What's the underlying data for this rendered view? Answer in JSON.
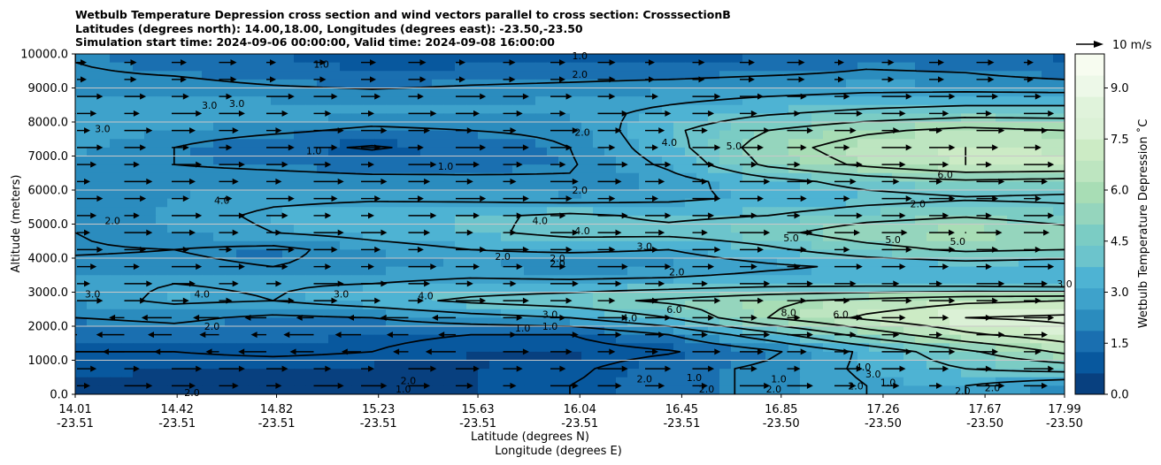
{
  "title_lines": [
    "Wetbulb Temperature Depression cross section and wind vectors parallel to cross section: CrosssectionB",
    "Latitudes (degrees north): 14.00,18.00, Longitudes (degrees east): -23.50,-23.50",
    "Simulation start time: 2024-09-06 00:00:00, Valid time: 2024-09-08 16:00:00"
  ],
  "chart_data": {
    "type": "heatmap",
    "title": "Wetbulb Temperature Depression cross section and wind vectors parallel to cross section: CrosssectionB",
    "ylabel": "Altitude (meters)",
    "xlabel_line1": "Latitude (degrees N)",
    "xlabel_line2": "Longitude (degrees E)",
    "ylim": [
      0,
      10000
    ],
    "yticks": [
      "0.0",
      "1000.0",
      "2000.0",
      "3000.0",
      "4000.0",
      "5000.0",
      "6000.0",
      "7000.0",
      "8000.0",
      "9000.0",
      "10000.0"
    ],
    "ytick_values": [
      0,
      1000,
      2000,
      3000,
      4000,
      5000,
      6000,
      7000,
      8000,
      9000,
      10000
    ],
    "xlim": [
      14.01,
      17.99
    ],
    "xticks": [
      {
        "lat": "14.01",
        "lon": "-23.51",
        "v": 14.01
      },
      {
        "lat": "14.42",
        "lon": "-23.51",
        "v": 14.42
      },
      {
        "lat": "14.82",
        "lon": "-23.51",
        "v": 14.82
      },
      {
        "lat": "15.23",
        "lon": "-23.51",
        "v": 15.23
      },
      {
        "lat": "15.63",
        "lon": "-23.51",
        "v": 15.63
      },
      {
        "lat": "16.04",
        "lon": "-23.51",
        "v": 16.04
      },
      {
        "lat": "16.45",
        "lon": "-23.51",
        "v": 16.45
      },
      {
        "lat": "16.85",
        "lon": "-23.50",
        "v": 16.85
      },
      {
        "lat": "17.26",
        "lon": "-23.50",
        "v": 17.26
      },
      {
        "lat": "17.67",
        "lon": "-23.50",
        "v": 17.67
      },
      {
        "lat": "17.99",
        "lon": "-23.50",
        "v": 17.99
      }
    ],
    "grid": "horizontal",
    "colorbar": {
      "label": "Wetbulb Temperature Depression ˚C",
      "range": [
        0,
        10
      ],
      "ticks": [
        "0.0",
        "1.5",
        "3.0",
        "4.5",
        "6.0",
        "7.5",
        "9.0"
      ],
      "tick_values": [
        0,
        1.5,
        3.0,
        4.5,
        6.0,
        7.5,
        9.0
      ],
      "colors": [
        "#08407f",
        "#08589e",
        "#1a6fb0",
        "#2b8cbe",
        "#3ea2cb",
        "#4eb3d3",
        "#6cc4cc",
        "#7bccc4",
        "#95d5bd",
        "#a8ddb5",
        "#bde5c0",
        "#ccebc5",
        "#dbf1d6",
        "#e0f3db",
        "#edf8e8",
        "#f7fcf0"
      ]
    },
    "quiver_key": "10 m/s",
    "field_rows": [
      {
        "alt": 9750,
        "values": [
          2.0,
          1.6,
          1.3,
          1.0,
          1.1,
          1.2,
          1.1,
          1.3,
          1.8,
          1.7,
          1.2
        ]
      },
      {
        "alt": 9250,
        "values": [
          2.2,
          2.1,
          1.8,
          1.6,
          1.8,
          1.9,
          2.0,
          2.2,
          2.3,
          2.2,
          2.0
        ]
      },
      {
        "alt": 8750,
        "values": [
          2.6,
          2.5,
          2.4,
          2.3,
          2.4,
          2.5,
          2.7,
          3.0,
          3.2,
          3.3,
          3.3
        ]
      },
      {
        "alt": 8250,
        "values": [
          3.0,
          2.9,
          2.8,
          2.6,
          2.6,
          2.6,
          3.3,
          3.9,
          4.3,
          4.6,
          4.6
        ]
      },
      {
        "alt": 7750,
        "values": [
          2.9,
          2.5,
          2.2,
          1.8,
          2.0,
          2.2,
          3.8,
          5.0,
          5.8,
          6.3,
          6.0
        ]
      },
      {
        "alt": 7250,
        "values": [
          2.6,
          2.0,
          1.3,
          0.9,
          1.4,
          2.0,
          3.6,
          5.5,
          6.6,
          7.0,
          6.8
        ]
      },
      {
        "alt": 6750,
        "values": [
          2.4,
          2.0,
          1.8,
          1.6,
          1.7,
          1.9,
          3.2,
          5.2,
          6.2,
          7.0,
          6.9
        ]
      },
      {
        "alt": 6250,
        "values": [
          2.2,
          2.4,
          2.4,
          2.3,
          2.2,
          2.1,
          2.6,
          3.6,
          4.4,
          4.8,
          4.6
        ]
      },
      {
        "alt": 5750,
        "values": [
          2.1,
          2.5,
          2.8,
          2.9,
          2.8,
          2.6,
          2.8,
          3.2,
          3.6,
          3.9,
          3.8
        ]
      },
      {
        "alt": 5250,
        "values": [
          2.0,
          2.6,
          3.2,
          3.5,
          3.8,
          4.2,
          3.8,
          4.0,
          4.6,
          4.9,
          4.5
        ]
      },
      {
        "alt": 4750,
        "values": [
          2.0,
          2.5,
          3.0,
          3.4,
          3.8,
          4.3,
          4.3,
          4.7,
          5.6,
          6.0,
          5.4
        ]
      },
      {
        "alt": 4250,
        "values": [
          1.9,
          2.0,
          1.7,
          2.5,
          3.0,
          3.2,
          3.0,
          3.8,
          4.6,
          5.2,
          5.0
        ]
      },
      {
        "alt": 3750,
        "values": [
          2.2,
          2.2,
          2.0,
          2.3,
          2.4,
          2.1,
          2.3,
          2.8,
          3.2,
          3.4,
          3.2
        ]
      },
      {
        "alt": 3250,
        "values": [
          2.8,
          3.0,
          2.9,
          3.0,
          3.3,
          3.3,
          3.4,
          3.6,
          3.6,
          3.5,
          3.3
        ]
      },
      {
        "alt": 2750,
        "values": [
          2.6,
          3.2,
          3.0,
          3.6,
          4.2,
          4.6,
          5.2,
          5.8,
          6.3,
          6.8,
          7.0
        ]
      },
      {
        "alt": 2250,
        "values": [
          2.0,
          2.2,
          1.8,
          2.0,
          2.6,
          3.0,
          4.0,
          6.0,
          7.2,
          8.0,
          8.2
        ]
      },
      {
        "alt": 1750,
        "values": [
          1.4,
          1.6,
          1.4,
          1.2,
          1.0,
          1.0,
          2.0,
          3.6,
          5.4,
          6.8,
          7.6
        ]
      },
      {
        "alt": 1250,
        "values": [
          1.0,
          1.0,
          1.2,
          1.0,
          0.6,
          0.5,
          0.9,
          1.8,
          3.2,
          4.8,
          6.2
        ]
      },
      {
        "alt": 750,
        "values": [
          0.8,
          0.6,
          0.5,
          0.5,
          0.6,
          0.8,
          1.6,
          2.2,
          3.2,
          4.0,
          4.4
        ]
      },
      {
        "alt": 250,
        "values": [
          0.5,
          0.4,
          0.3,
          0.3,
          0.6,
          1.0,
          1.6,
          2.2,
          3.0,
          3.0,
          2.2
        ]
      }
    ],
    "contour_labels": [
      {
        "text": "1.0",
        "x": 16.04,
        "y": 9950
      },
      {
        "text": "2.0",
        "x": 16.04,
        "y": 9400
      },
      {
        "text": "1.0",
        "x": 15.0,
        "y": 9700
      },
      {
        "text": "3.0",
        "x": 14.55,
        "y": 8500
      },
      {
        "text": "3.0",
        "x": 14.66,
        "y": 8550
      },
      {
        "text": "3.0",
        "x": 14.12,
        "y": 7800
      },
      {
        "text": "2.0",
        "x": 16.05,
        "y": 7700
      },
      {
        "text": "4.0",
        "x": 16.4,
        "y": 7400
      },
      {
        "text": "5.0",
        "x": 16.66,
        "y": 7300
      },
      {
        "text": "1.0",
        "x": 14.97,
        "y": 7150
      },
      {
        "text": "1.0",
        "x": 15.5,
        "y": 6700
      },
      {
        "text": "6.0",
        "x": 17.51,
        "y": 6450
      },
      {
        "text": "2.0",
        "x": 16.04,
        "y": 6000
      },
      {
        "text": "4.0",
        "x": 14.6,
        "y": 5700
      },
      {
        "text": "2.0",
        "x": 17.4,
        "y": 5600
      },
      {
        "text": "2.0",
        "x": 14.16,
        "y": 5100
      },
      {
        "text": "4.0",
        "x": 15.88,
        "y": 5100
      },
      {
        "text": "4.0",
        "x": 16.05,
        "y": 4800
      },
      {
        "text": "5.0",
        "x": 16.89,
        "y": 4600
      },
      {
        "text": "5.0",
        "x": 17.3,
        "y": 4550
      },
      {
        "text": "5.0",
        "x": 17.56,
        "y": 4500
      },
      {
        "text": "3.0",
        "x": 16.3,
        "y": 4350
      },
      {
        "text": "2.0",
        "x": 15.73,
        "y": 4050
      },
      {
        "text": "2.0",
        "x": 15.95,
        "y": 4000
      },
      {
        "text": "2.0",
        "x": 15.95,
        "y": 3850
      },
      {
        "text": "2.0",
        "x": 16.43,
        "y": 3600
      },
      {
        "text": "3.0",
        "x": 14.08,
        "y": 2950
      },
      {
        "text": "4.0",
        "x": 14.52,
        "y": 2950
      },
      {
        "text": "3.0",
        "x": 15.08,
        "y": 2950
      },
      {
        "text": "4.0",
        "x": 15.42,
        "y": 2900
      },
      {
        "text": "3.0",
        "x": 15.92,
        "y": 2350
      },
      {
        "text": "4.0",
        "x": 16.24,
        "y": 2250
      },
      {
        "text": "6.0",
        "x": 16.42,
        "y": 2500
      },
      {
        "text": "8.0",
        "x": 16.88,
        "y": 2400
      },
      {
        "text": "6.0",
        "x": 17.09,
        "y": 2350
      },
      {
        "text": "3.0",
        "x": 17.99,
        "y": 3250
      },
      {
        "text": "2.0",
        "x": 14.56,
        "y": 2000
      },
      {
        "text": "1.0",
        "x": 15.81,
        "y": 1950
      },
      {
        "text": "1.0",
        "x": 15.92,
        "y": 2000
      },
      {
        "text": "2.0",
        "x": 15.35,
        "y": 400
      },
      {
        "text": "1.0",
        "x": 15.33,
        "y": 150
      },
      {
        "text": "2.0",
        "x": 14.48,
        "y": 50
      },
      {
        "text": "2.0",
        "x": 16.3,
        "y": 450
      },
      {
        "text": "1.0",
        "x": 16.5,
        "y": 500
      },
      {
        "text": "2.0",
        "x": 16.55,
        "y": 150
      },
      {
        "text": "2.0",
        "x": 16.82,
        "y": 150
      },
      {
        "text": "1.0",
        "x": 16.84,
        "y": 450
      },
      {
        "text": "2.0",
        "x": 17.15,
        "y": 250
      },
      {
        "text": "3.0",
        "x": 17.22,
        "y": 600
      },
      {
        "text": "1.0",
        "x": 17.28,
        "y": 350
      },
      {
        "text": "4.0",
        "x": 17.18,
        "y": 800
      },
      {
        "text": "2.0",
        "x": 17.7,
        "y": 200
      },
      {
        "text": "2.0",
        "x": 17.58,
        "y": 100
      }
    ]
  }
}
